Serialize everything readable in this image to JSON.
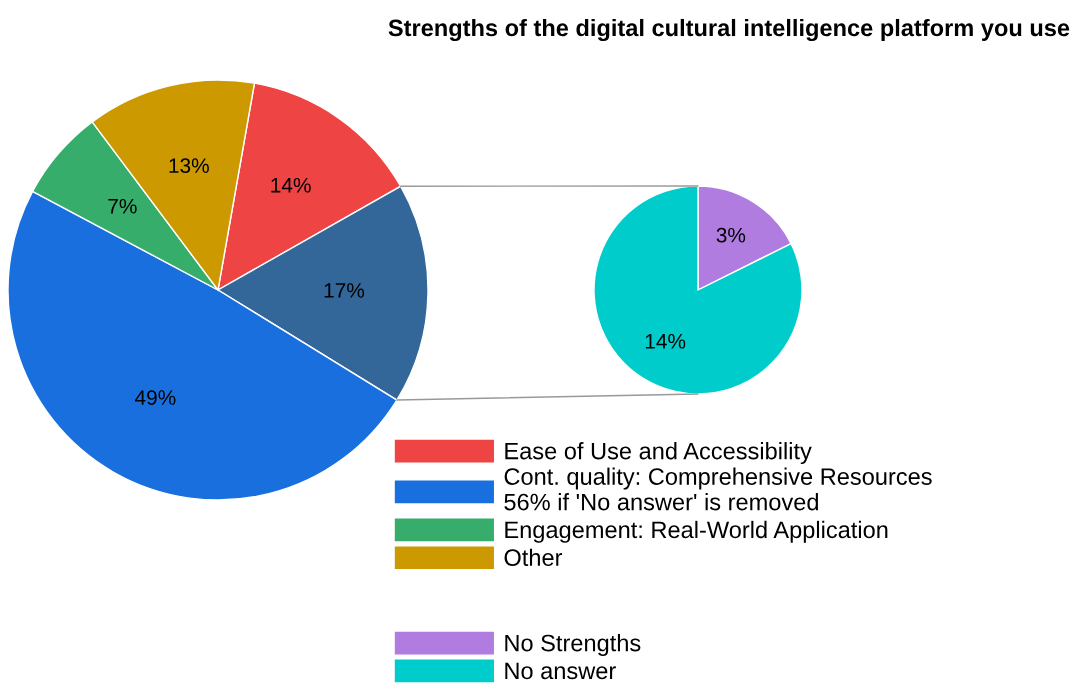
{
  "chart_data": [
    {
      "type": "pie",
      "title": "Strengths of the digital cultural intelligence platform you use",
      "categories": [
        "Ease of Use and Accessibility",
        null,
        "Cont. quality: Comprehensive Resources\n56% if 'No answer' is removed",
        "Engagement: Real-World Application",
        "Other"
      ],
      "values": [
        14,
        17,
        49,
        7,
        13
      ],
      "value_labels": [
        "14%",
        "17%",
        "49%",
        "7%",
        "13%"
      ],
      "colors": [
        "#ef4444",
        "#336699",
        "#1a6fdf",
        "#37ad6b",
        "#cc9900"
      ],
      "legend": "bottom right"
    },
    {
      "type": "pie",
      "categories": [
        "No Strengths",
        "No answer"
      ],
      "values": [
        3,
        14
      ],
      "value_labels": [
        "3%",
        "14%"
      ],
      "colors": [
        "#b07ce0",
        "#00cccc"
      ],
      "legend": "bottom left"
    }
  ]
}
